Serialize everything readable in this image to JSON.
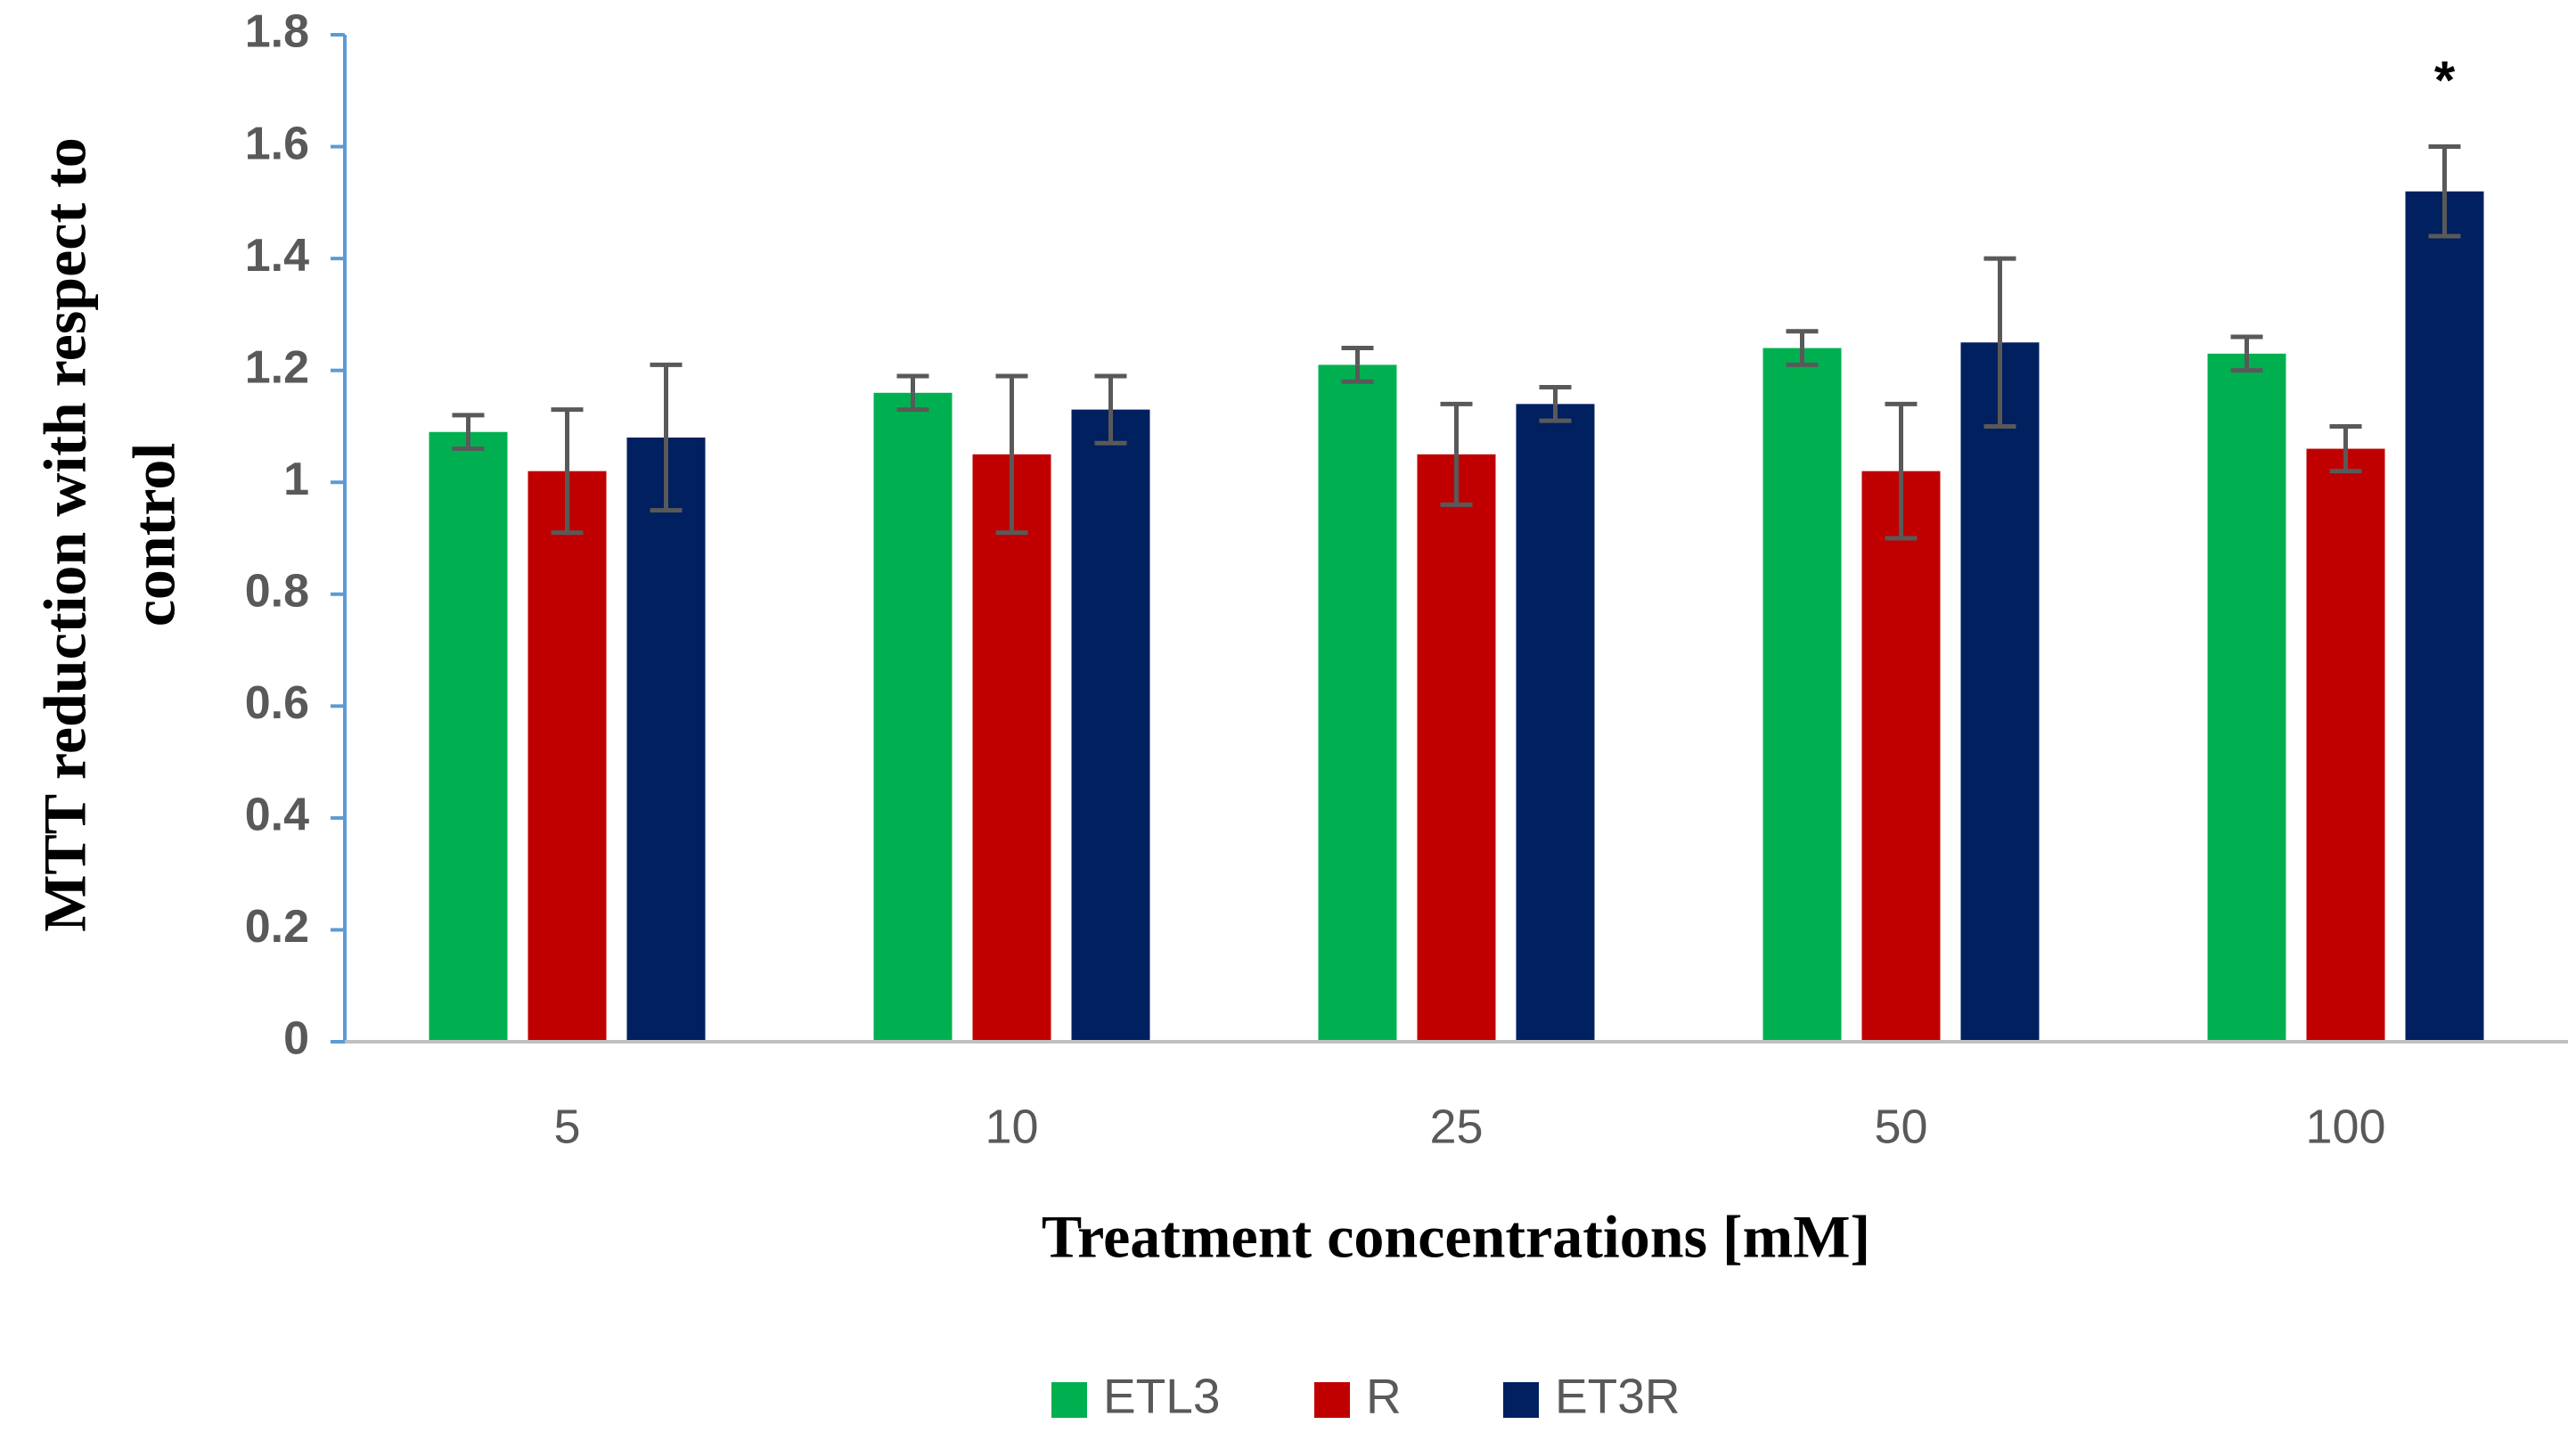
{
  "chart_data": {
    "type": "bar",
    "ylabel": [
      "MTT reduction with respect to",
      "control"
    ],
    "xlabel": "Treatment concentrations [mM]",
    "categories": [
      "5",
      "10",
      "25",
      "50",
      "100"
    ],
    "series": [
      {
        "name": "ETL3",
        "color": "#00b050",
        "values": [
          1.09,
          1.16,
          1.21,
          1.24,
          1.23
        ],
        "errors": [
          0.03,
          0.03,
          0.03,
          0.03,
          0.03
        ]
      },
      {
        "name": "R",
        "color": "#c00000",
        "values": [
          1.02,
          1.05,
          1.05,
          1.02,
          1.06
        ],
        "errors": [
          0.11,
          0.14,
          0.09,
          0.12,
          0.04
        ]
      },
      {
        "name": "ET3R",
        "color": "#002060",
        "values": [
          1.08,
          1.13,
          1.14,
          1.25,
          1.52
        ],
        "errors": [
          0.13,
          0.06,
          0.03,
          0.15,
          0.08
        ]
      }
    ],
    "annotations": [
      {
        "text": "*",
        "category": "100",
        "series": "ET3R"
      }
    ],
    "ylim": [
      0,
      1.8
    ],
    "yticks": [
      0,
      0.2,
      0.4,
      0.6,
      0.8,
      1,
      1.2,
      1.4,
      1.6,
      1.8
    ],
    "grid": false,
    "legend": "bottom"
  }
}
